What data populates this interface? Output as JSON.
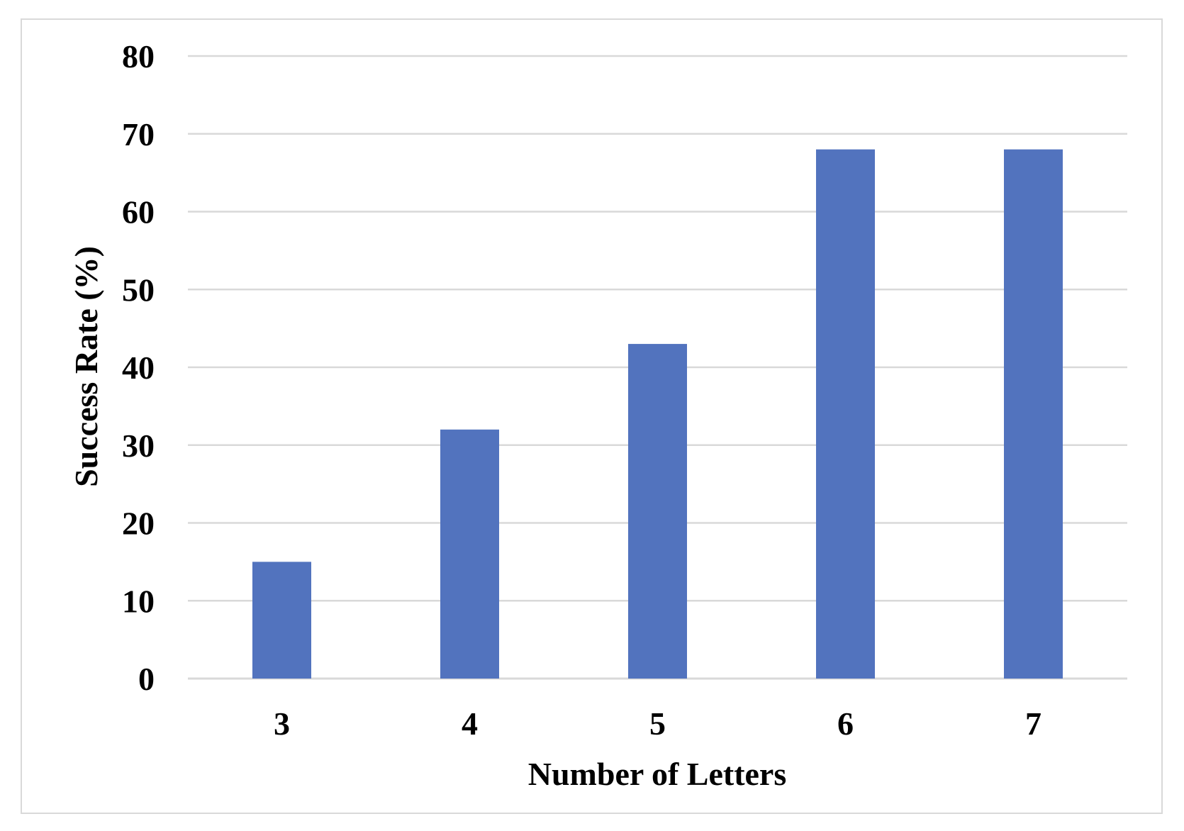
{
  "chart_data": {
    "type": "bar",
    "categories": [
      "3",
      "4",
      "5",
      "6",
      "7"
    ],
    "series": [
      {
        "values": [
          15,
          32,
          43,
          68,
          68
        ]
      }
    ],
    "title": "",
    "xlabel": "Number of Letters",
    "ylabel": "Success Rate (%)",
    "ylim": [
      0,
      80
    ],
    "yticks": [
      "0",
      "10",
      "20",
      "30",
      "40",
      "50",
      "60",
      "70",
      "80"
    ],
    "grid": true,
    "legend": "none",
    "colors": {
      "bar": "#5273be",
      "grid": "#d9d9d9",
      "frame": "#d9d9d9"
    }
  }
}
